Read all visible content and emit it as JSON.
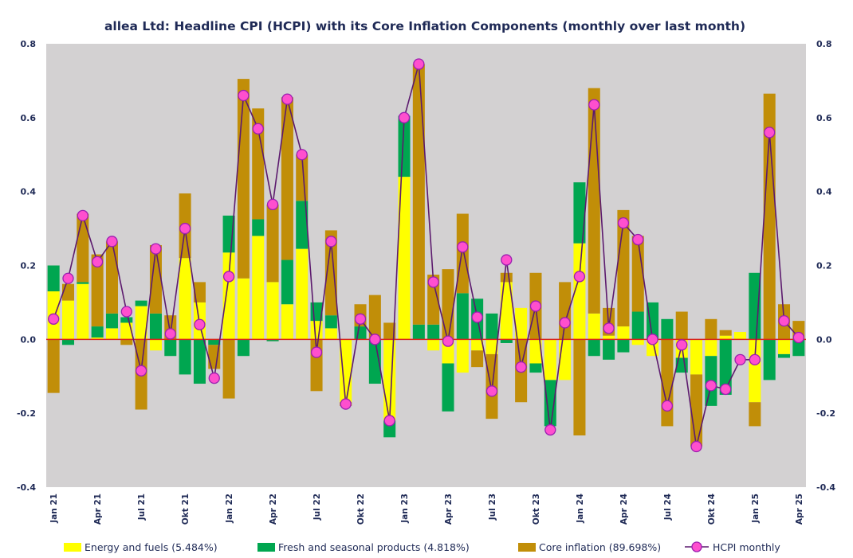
{
  "chart_data": {
    "type": "bar",
    "title": "allea Ltd: Headline CPI (HCPI) with its Core Inflation Components (monthly over last month)",
    "xlabel": "",
    "ylabel": "",
    "ylim": [
      -0.4,
      0.8
    ],
    "yticks": [
      "0.8",
      "0.6",
      "0.4",
      "0.2",
      "0.0",
      "-0.2",
      "-0.4"
    ],
    "ytick_values": [
      0.8,
      0.6,
      0.4,
      0.2,
      0.0,
      -0.2,
      -0.4
    ],
    "x_tick_labels": [
      {
        "index": 0,
        "label": "Jan 21"
      },
      {
        "index": 3,
        "label": "Apr 21"
      },
      {
        "index": 6,
        "label": "Jul 21"
      },
      {
        "index": 9,
        "label": "Okt 21"
      },
      {
        "index": 12,
        "label": "Jan 22"
      },
      {
        "index": 15,
        "label": "Apr 22"
      },
      {
        "index": 18,
        "label": "Jul 22"
      },
      {
        "index": 21,
        "label": "Okt 22"
      },
      {
        "index": 24,
        "label": "Jan 23"
      },
      {
        "index": 27,
        "label": "Apr 23"
      },
      {
        "index": 30,
        "label": "Jul 23"
      },
      {
        "index": 33,
        "label": "Okt 23"
      },
      {
        "index": 36,
        "label": "Jan 24"
      },
      {
        "index": 39,
        "label": "Apr 24"
      },
      {
        "index": 42,
        "label": "Jul 24"
      },
      {
        "index": 45,
        "label": "Okt 24"
      },
      {
        "index": 48,
        "label": "Jan 25"
      },
      {
        "index": 51,
        "label": "Apr 25"
      }
    ],
    "categories": [
      "Jan 21",
      "Feb 21",
      "Mar 21",
      "Apr 21",
      "May 21",
      "Jun 21",
      "Jul 21",
      "Aug 21",
      "Sep 21",
      "Oct 21",
      "Nov 21",
      "Dec 21",
      "Jan 22",
      "Feb 22",
      "Mar 22",
      "Apr 22",
      "May 22",
      "Jun 22",
      "Jul 22",
      "Aug 22",
      "Sep 22",
      "Oct 22",
      "Nov 22",
      "Dec 22",
      "Jan 23",
      "Feb 23",
      "Mar 23",
      "Apr 23",
      "May 23",
      "Jun 23",
      "Jul 23",
      "Aug 23",
      "Sep 23",
      "Oct 23",
      "Nov 23",
      "Dec 23",
      "Jan 24",
      "Feb 24",
      "Mar 24",
      "Apr 24",
      "May 24",
      "Jun 24",
      "Jul 24",
      "Aug 24",
      "Sep 24",
      "Oct 24",
      "Nov 24",
      "Dec 24",
      "Jan 25",
      "Feb 25",
      "Mar 25",
      "Apr 25"
    ],
    "series": [
      {
        "name": "Energy and fuels (5.484%)",
        "kind": "bar",
        "color": "#ffff00",
        "values": [
          0.13,
          0.105,
          0.15,
          0.005,
          0.03,
          0.045,
          0.09,
          -0.03,
          0.0,
          0.22,
          0.1,
          0.0,
          0.235,
          0.165,
          0.28,
          0.155,
          0.095,
          0.245,
          0.05,
          0.03,
          -0.17,
          0.0,
          0.0,
          -0.22,
          0.44,
          0.0,
          -0.03,
          -0.065,
          -0.09,
          -0.03,
          -0.04,
          0.155,
          0.085,
          -0.065,
          -0.11,
          -0.11,
          0.26,
          0.07,
          0.01,
          0.035,
          -0.015,
          -0.045,
          0.0,
          -0.05,
          -0.095,
          -0.045,
          0.01,
          0.02,
          -0.17,
          0.0,
          -0.04,
          0.0
        ]
      },
      {
        "name": "Fresh and seasonal products (4.818%)",
        "kind": "bar",
        "color": "#00a650",
        "values": [
          0.07,
          -0.015,
          0.005,
          0.03,
          0.04,
          0.015,
          0.015,
          0.07,
          -0.045,
          -0.095,
          -0.12,
          -0.015,
          0.1,
          -0.045,
          0.045,
          -0.005,
          0.12,
          0.13,
          0.05,
          0.035,
          0.0,
          0.035,
          -0.12,
          -0.045,
          0.165,
          0.04,
          0.04,
          -0.13,
          0.125,
          0.11,
          0.07,
          -0.01,
          0.0,
          -0.025,
          -0.125,
          0.0,
          0.165,
          -0.045,
          -0.055,
          -0.035,
          0.075,
          0.1,
          0.055,
          -0.04,
          -0.0,
          -0.135,
          -0.15,
          0.0,
          0.18,
          -0.11,
          -0.01,
          -0.045
        ]
      },
      {
        "name": "Core inflation (89.698%)",
        "kind": "bar",
        "color": "#c18e08",
        "values": [
          -0.145,
          0.045,
          0.185,
          0.195,
          0.195,
          -0.015,
          -0.19,
          0.185,
          0.065,
          0.175,
          0.055,
          -0.065,
          -0.16,
          0.54,
          0.3,
          0.21,
          0.44,
          0.125,
          -0.14,
          0.23,
          -0.01,
          0.06,
          0.12,
          0.045,
          0.0,
          0.705,
          0.135,
          0.19,
          0.215,
          -0.045,
          -0.175,
          0.025,
          -0.17,
          0.18,
          0.0,
          0.155,
          -0.26,
          0.61,
          0.075,
          0.315,
          0.205,
          0.0,
          -0.235,
          0.075,
          -0.195,
          0.055,
          0.015,
          0.0,
          -0.065,
          0.665,
          0.095,
          0.05
        ]
      },
      {
        "name": "HCPI monthly",
        "kind": "line",
        "color": "#5c1a6e",
        "marker_color": "#ff4fce",
        "values": [
          0.055,
          0.165,
          0.335,
          0.21,
          0.265,
          0.075,
          -0.085,
          0.245,
          0.015,
          0.3,
          0.04,
          -0.105,
          0.17,
          0.66,
          0.57,
          0.365,
          0.65,
          0.5,
          -0.035,
          0.265,
          -0.175,
          0.055,
          0.0,
          -0.22,
          0.6,
          0.745,
          0.155,
          -0.005,
          0.25,
          0.06,
          -0.14,
          0.215,
          -0.075,
          0.09,
          -0.245,
          0.045,
          0.17,
          0.635,
          0.03,
          0.315,
          0.27,
          0.0,
          -0.18,
          -0.015,
          -0.29,
          -0.125,
          -0.135,
          -0.055,
          -0.055,
          0.56,
          0.05,
          0.005
        ]
      }
    ],
    "legend_position": "bottom"
  },
  "colors": {
    "plot_background": "#d3d1d2",
    "zero_line": "#d9261c",
    "text": "#1f2a56"
  }
}
